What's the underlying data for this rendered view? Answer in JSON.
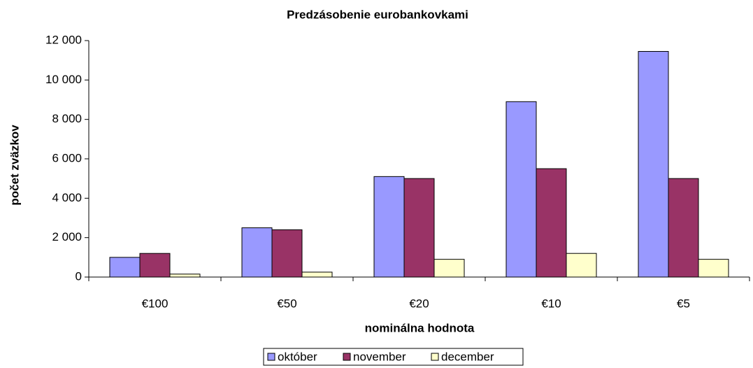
{
  "chart_data": {
    "type": "bar",
    "title": "Predzásobenie eurobankovkami",
    "x_label": "nominálna hodnota",
    "y_label": "počet zväzkov",
    "categories": [
      "€100",
      "€50",
      "€20",
      "€10",
      "€5"
    ],
    "series": [
      {
        "name": "október",
        "color": "#9999ff",
        "values": [
          1000,
          2500,
          5100,
          8900,
          11450
        ]
      },
      {
        "name": "november",
        "color": "#993366",
        "values": [
          1200,
          2400,
          5000,
          5500,
          5000
        ]
      },
      {
        "name": "december",
        "color": "#ffffcc",
        "values": [
          150,
          250,
          900,
          1200,
          900
        ]
      }
    ],
    "ylim": [
      0,
      12000
    ],
    "yticks": [
      0,
      {
        "value": 2000,
        "label": "2 000"
      },
      {
        "value": 4000,
        "label": "4 000"
      },
      {
        "value": 6000,
        "label": "6 000"
      },
      {
        "value": 8000,
        "label": "8 000"
      },
      {
        "value": 10000,
        "label": "10 000"
      },
      {
        "value": 12000,
        "label": "12 000"
      }
    ],
    "grid": false,
    "legend": "bottom"
  }
}
